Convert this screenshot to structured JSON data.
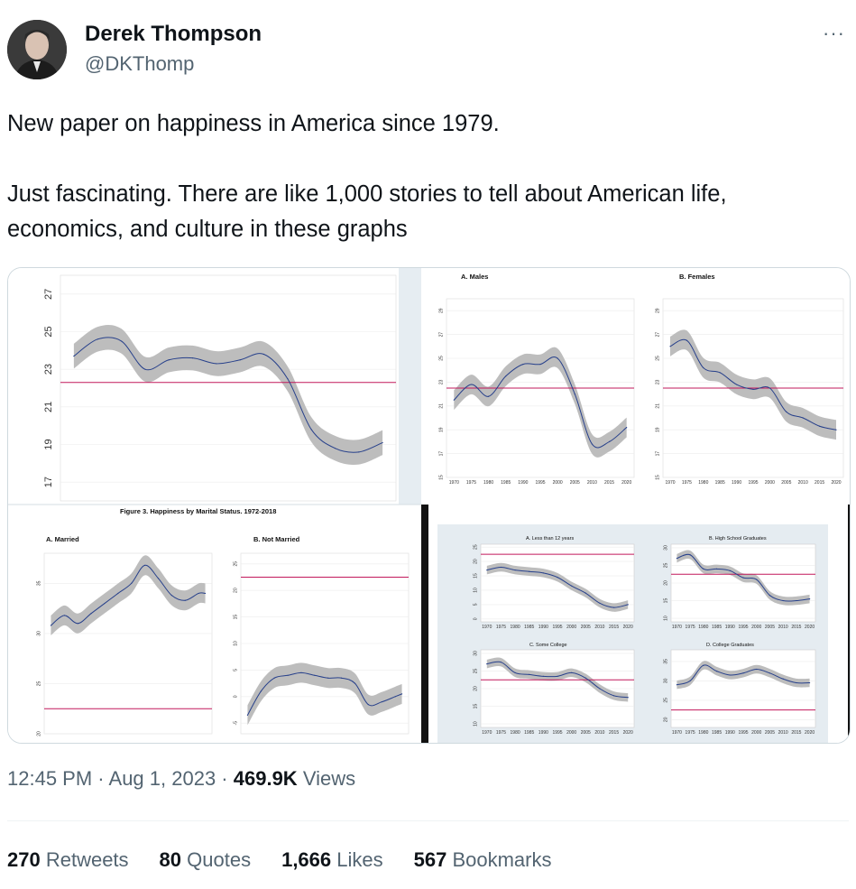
{
  "author": {
    "name": "Derek Thompson",
    "handle": "@DKThomp"
  },
  "tweet": {
    "line1": "New paper on happiness in America since 1979.",
    "line2": "Just fascinating. There are like 1,000 stories to tell about American life, economics, and culture in these graphs"
  },
  "menu": {
    "more_label": "···"
  },
  "meta": {
    "time": "12:45 PM",
    "sep1": " · ",
    "date": "Aug 1, 2023",
    "sep2": " · ",
    "views_count": "469.9K",
    "views_label": " Views"
  },
  "stats": {
    "retweets": {
      "count": "270",
      "label": " Retweets"
    },
    "quotes": {
      "count": "80",
      "label": " Quotes"
    },
    "likes": {
      "count": "1,666",
      "label": " Likes"
    },
    "bookmarks": {
      "count": "567",
      "label": " Bookmarks"
    }
  },
  "colors": {
    "band": "#bdbdbd",
    "line": "#27408b",
    "reference": "#c2185b",
    "panel_bg": "#e5ecf1"
  },
  "chart_data": [
    {
      "type": "line",
      "title": "",
      "x": [
        1979,
        1982,
        1985,
        1988,
        1991,
        1994,
        1997,
        2000,
        2003,
        2006,
        2009,
        2012,
        2015,
        2018
      ],
      "series": [
        {
          "values": [
            23.7,
            24.6,
            24.5,
            23.0,
            23.5,
            23.6,
            23.3,
            23.5,
            23.8,
            22.5,
            19.8,
            18.8,
            18.6,
            19.1
          ]
        }
      ],
      "reference": 22.3,
      "yticks": [
        "17",
        "19",
        "21",
        "23",
        "25",
        "27"
      ],
      "ylim": [
        16,
        28
      ]
    },
    {
      "type": "line",
      "title": "A. Males",
      "x": [
        1970,
        1975,
        1980,
        1985,
        1990,
        1995,
        2000,
        2005,
        2010,
        2015,
        2020
      ],
      "series": [
        {
          "values": [
            21.5,
            22.8,
            21.8,
            23.5,
            24.5,
            24.5,
            25.0,
            22.0,
            17.8,
            18.0,
            19.2
          ]
        }
      ],
      "reference": 22.5,
      "xticks": [
        "1970",
        "1975",
        "1980",
        "1985",
        "1990",
        "1995",
        "2000",
        "2005",
        "2010",
        "2015",
        "2020"
      ],
      "yticks": [
        "15",
        "17",
        "19",
        "21",
        "23",
        "25",
        "27",
        "29"
      ],
      "ylim": [
        15,
        30
      ]
    },
    {
      "type": "line",
      "title": "B. Females",
      "x": [
        1970,
        1975,
        1980,
        1985,
        1990,
        1995,
        2000,
        2005,
        2010,
        2015,
        2020
      ],
      "series": [
        {
          "values": [
            26.0,
            26.5,
            24.2,
            23.8,
            22.8,
            22.4,
            22.5,
            20.5,
            20.0,
            19.3,
            19.0
          ]
        }
      ],
      "reference": 22.5,
      "xticks": [
        "1970",
        "1975",
        "1980",
        "1985",
        "1990",
        "1995",
        "2000",
        "2005",
        "2010",
        "2015",
        "2020"
      ],
      "yticks": [
        "15",
        "17",
        "19",
        "21",
        "23",
        "25",
        "27",
        "29"
      ],
      "ylim": [
        15,
        30
      ]
    },
    {
      "type": "line",
      "title": "A. Married",
      "x": [
        1972,
        1976,
        1980,
        1984,
        1988,
        1992,
        1996,
        2000,
        2004,
        2008,
        2012,
        2016,
        2018
      ],
      "series": [
        {
          "values": [
            30.8,
            31.8,
            31.0,
            32.0,
            33.0,
            34.0,
            35.0,
            36.8,
            35.5,
            33.8,
            33.3,
            34.0,
            34.0
          ]
        }
      ],
      "reference": 22.5,
      "yticks": [
        "20",
        "25",
        "30",
        "35"
      ],
      "ylim": [
        20,
        38
      ]
    },
    {
      "type": "line",
      "title": "B. Not Married",
      "x": [
        1972,
        1976,
        1980,
        1984,
        1988,
        1992,
        1996,
        2000,
        2004,
        2008,
        2012,
        2016,
        2018
      ],
      "series": [
        {
          "values": [
            -3.5,
            1.0,
            3.5,
            4.0,
            4.5,
            4.0,
            3.5,
            3.5,
            2.5,
            -1.5,
            -1.0,
            0.0,
            0.5
          ]
        }
      ],
      "reference": 22.5,
      "yticks": [
        "-5",
        "0",
        "5",
        "10",
        "15",
        "20",
        "25"
      ],
      "ylim": [
        -7,
        27
      ]
    },
    {
      "type": "line",
      "title": "A. Less than 12 years",
      "x": [
        1970,
        1975,
        1980,
        1985,
        1990,
        1995,
        2000,
        2005,
        2010,
        2015,
        2020
      ],
      "series": [
        {
          "values": [
            17.0,
            18.0,
            17.0,
            16.5,
            16.0,
            14.5,
            11.5,
            9.0,
            5.5,
            4.0,
            5.0
          ]
        }
      ],
      "reference": 22.5,
      "xticks": [
        "1970",
        "1975",
        "1980",
        "1985",
        "1990",
        "1995",
        "2000",
        "2005",
        "2010",
        "2015",
        "2020"
      ],
      "yticks": [
        "0",
        "5",
        "10",
        "15",
        "20",
        "25"
      ],
      "ylim": [
        -1,
        26
      ]
    },
    {
      "type": "line",
      "title": "B. High School Graduates",
      "x": [
        1970,
        1975,
        1980,
        1985,
        1990,
        1995,
        2000,
        2005,
        2010,
        2015,
        2020
      ],
      "series": [
        {
          "values": [
            27.0,
            28.0,
            24.0,
            24.0,
            23.5,
            21.5,
            21.0,
            16.5,
            15.0,
            15.0,
            15.5
          ]
        }
      ],
      "reference": 22.5,
      "xticks": [
        "1970",
        "1975",
        "1980",
        "1985",
        "1990",
        "1995",
        "2000",
        "2005",
        "2010",
        "2015",
        "2020"
      ],
      "yticks": [
        "10",
        "15",
        "20",
        "25",
        "30"
      ],
      "ylim": [
        9,
        31
      ]
    },
    {
      "type": "line",
      "title": "C. Some College",
      "x": [
        1970,
        1975,
        1980,
        1985,
        1990,
        1995,
        2000,
        2005,
        2010,
        2015,
        2020
      ],
      "series": [
        {
          "values": [
            27.0,
            27.5,
            24.5,
            24.0,
            23.5,
            23.5,
            24.5,
            23.0,
            20.0,
            18.0,
            17.5
          ]
        }
      ],
      "reference": 22.5,
      "xticks": [
        "1970",
        "1975",
        "1980",
        "1985",
        "1990",
        "1995",
        "2000",
        "2005",
        "2010",
        "2015",
        "2020"
      ],
      "yticks": [
        "10",
        "15",
        "20",
        "25",
        "30"
      ],
      "ylim": [
        9,
        31
      ]
    },
    {
      "type": "line",
      "title": "D. College Graduates",
      "x": [
        1970,
        1975,
        1980,
        1985,
        1990,
        1995,
        2000,
        2005,
        2010,
        2015,
        2020
      ],
      "series": [
        {
          "values": [
            29.0,
            30.0,
            34.0,
            32.5,
            31.5,
            32.0,
            33.0,
            32.0,
            30.5,
            29.5,
            29.5
          ]
        }
      ],
      "reference": 22.5,
      "xticks": [
        "1970",
        "1975",
        "1980",
        "1985",
        "1990",
        "1995",
        "2000",
        "2005",
        "2010",
        "2015",
        "2020"
      ],
      "yticks": [
        "20",
        "25",
        "30",
        "35"
      ],
      "ylim": [
        18,
        38
      ]
    }
  ],
  "figure_caption": "Figure 3.  Happiness by Marital Status. 1972-2018"
}
